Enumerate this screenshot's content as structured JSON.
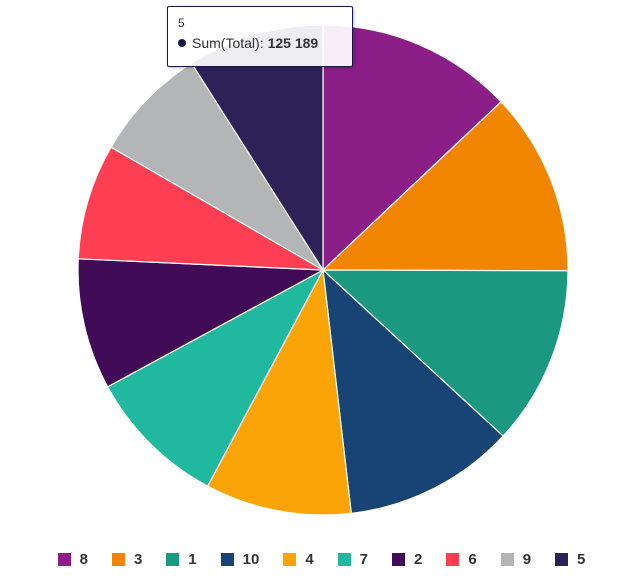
{
  "chart_data": {
    "type": "pie",
    "series_name": "Sum(Total)",
    "slices": [
      {
        "label": "8",
        "value": 180000,
        "color": "#8b1e87"
      },
      {
        "label": "3",
        "value": 168000,
        "color": "#f28500"
      },
      {
        "label": "1",
        "value": 164000,
        "color": "#1a9880"
      },
      {
        "label": "10",
        "value": 157000,
        "color": "#174375"
      },
      {
        "label": "4",
        "value": 134000,
        "color": "#fba407"
      },
      {
        "label": "7",
        "value": 129000,
        "color": "#20b89e"
      },
      {
        "label": "2",
        "value": 120000,
        "color": "#420b58"
      },
      {
        "label": "6",
        "value": 106000,
        "color": "#fe3e53"
      },
      {
        "label": "9",
        "value": 106000,
        "color": "#b3b5b6"
      },
      {
        "label": "5",
        "value": 125189,
        "color": "#2d2158"
      }
    ],
    "legend": "bottom",
    "tooltip": {
      "category": "5",
      "series": "Sum(Total)",
      "value_text": "125 189",
      "color": "#1a1848"
    }
  }
}
